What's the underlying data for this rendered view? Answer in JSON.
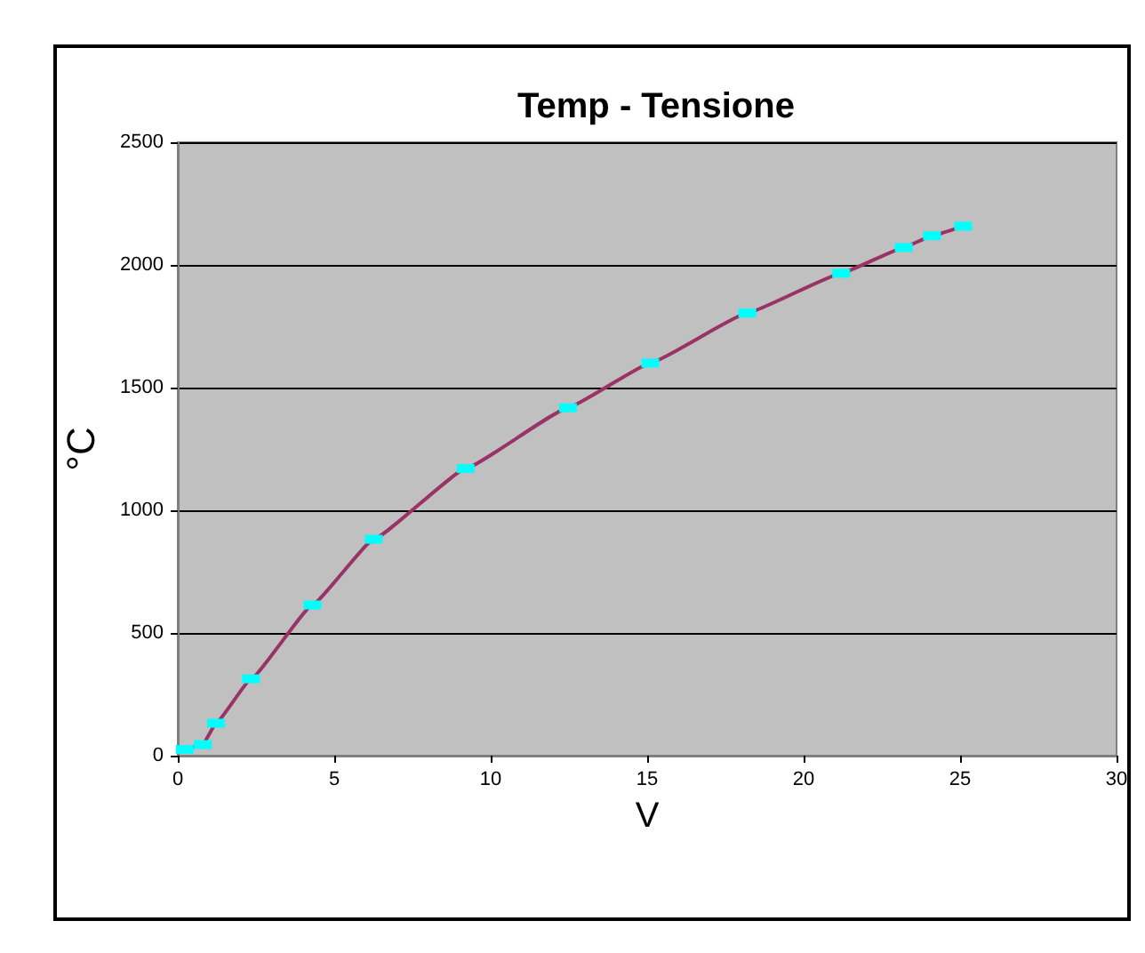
{
  "chart_data": {
    "type": "line",
    "title": "Temp - Tensione",
    "xlabel": "V",
    "ylabel": "°C",
    "series": [
      {
        "color": "#993366",
        "x": [
          0.22,
          0.8,
          1.22,
          2.34,
          4.3,
          6.26,
          9.2,
          12.47,
          15.1,
          18.2,
          21.2,
          23.2,
          24.1,
          25.1
        ],
        "values": [
          25,
          45,
          132,
          313,
          614,
          882,
          1170,
          1418,
          1600,
          1804,
          1966,
          2071,
          2119,
          2158
        ],
        "colors": [
          "#00ffff",
          "#00ffff",
          "#00ffff",
          "#00ffff",
          "#00ffff",
          "#00ffff",
          "#00ffff",
          "#00ffff",
          "#00ffff",
          "#00ffff",
          "#00ffff",
          "#00ffff",
          "#00ffff",
          "#00ffff"
        ]
      }
    ],
    "xlim": [
      0,
      30
    ],
    "xticks": [
      0,
      5,
      10,
      15,
      20,
      25,
      30
    ],
    "ylim": [
      0,
      2500
    ],
    "yticks": [
      0,
      500,
      1000,
      1500,
      2000,
      2500
    ],
    "grid": "y",
    "marker": "square"
  }
}
